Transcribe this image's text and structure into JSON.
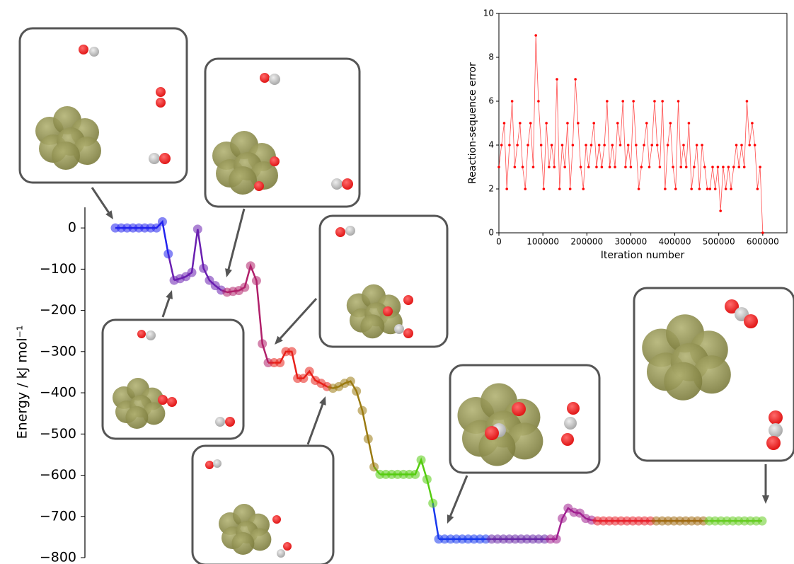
{
  "chart_data": [
    {
      "type": "line",
      "ylabel": "Energy / kJ mol⁻¹",
      "ylim": [
        -800,
        50
      ],
      "yticks": [
        {
          "value": -800,
          "label": "−800"
        },
        {
          "value": -700,
          "label": "−700"
        },
        {
          "value": -600,
          "label": "−600"
        },
        {
          "value": -500,
          "label": "−500"
        },
        {
          "value": -400,
          "label": "−400"
        },
        {
          "value": -300,
          "label": "−300"
        },
        {
          "value": -200,
          "label": "−200"
        },
        {
          "value": -100,
          "label": "−100"
        },
        0
      ],
      "series": [
        {
          "color": "#2222ee",
          "values": [
            0,
            0,
            0,
            0,
            0,
            0,
            0,
            0,
            15,
            -63
          ]
        },
        {
          "color": "#6a1fb0",
          "values": [
            -127,
            -123,
            -118,
            -108,
            -3,
            -98,
            -127,
            -140,
            -151
          ]
        },
        {
          "color": "#b0206a",
          "values": [
            -156,
            -154,
            -152,
            -144,
            -92,
            -128,
            -281,
            -327
          ]
        },
        {
          "color": "#e8201a",
          "values": [
            -327,
            -327,
            -300,
            -300,
            -365,
            -365,
            -348,
            -370,
            -377,
            -385
          ]
        },
        {
          "color": "#9a7a10",
          "values": [
            -389,
            -385,
            -377,
            -372,
            -396,
            -443,
            -512,
            -580
          ]
        },
        {
          "color": "#55cc10",
          "values": [
            -598,
            -598,
            -598,
            -598,
            -598,
            -598,
            -598,
            -563,
            -610,
            -668
          ]
        },
        {
          "color": "#1a3aee",
          "values": [
            -755,
            -755,
            -755,
            -755,
            -755,
            -755,
            -755,
            -755,
            -755
          ]
        },
        {
          "color": "#6a2aa8",
          "values": [
            -755,
            -755,
            -755,
            -755,
            -755,
            -755,
            -755,
            -755,
            -755,
            -755
          ]
        },
        {
          "color": "#a02090",
          "values": [
            -755,
            -755,
            -705,
            -680,
            -690,
            -692,
            -705,
            -709
          ]
        },
        {
          "color": "#e8202a",
          "values": [
            -711,
            -711,
            -711,
            -711,
            -711,
            -711,
            -711,
            -711,
            -711,
            -711
          ]
        },
        {
          "color": "#a06a10",
          "values": [
            -711,
            -711,
            -711,
            -711,
            -711,
            -711,
            -711,
            -711,
            -711
          ]
        },
        {
          "color": "#66cc22",
          "values": [
            -711,
            -711,
            -711,
            -711,
            -711,
            -711,
            -711,
            -711,
            -711,
            -711
          ]
        }
      ]
    },
    {
      "type": "scatter-line",
      "xlabel": "Iteration number",
      "ylabel": "Reaction-sequence error",
      "xlim": [
        0,
        655000
      ],
      "ylim": [
        0,
        10
      ],
      "xticks": [
        0,
        100000,
        200000,
        300000,
        400000,
        500000,
        600000
      ],
      "yticks": [
        0,
        2,
        4,
        6,
        8,
        10
      ],
      "color": "#ff0000",
      "x": [
        0,
        6000,
        12000,
        18000,
        24000,
        30000,
        36000,
        42000,
        48000,
        54000,
        60000,
        66000,
        72000,
        78000,
        84000,
        90000,
        96000,
        102000,
        108000,
        114000,
        120000,
        126000,
        132000,
        138000,
        144000,
        150000,
        156000,
        162000,
        168000,
        174000,
        180000,
        186000,
        192000,
        198000,
        204000,
        210000,
        216000,
        222000,
        228000,
        234000,
        240000,
        246000,
        252000,
        258000,
        264000,
        270000,
        276000,
        282000,
        288000,
        294000,
        300000,
        306000,
        312000,
        318000,
        324000,
        330000,
        336000,
        342000,
        348000,
        354000,
        360000,
        366000,
        372000,
        378000,
        384000,
        390000,
        396000,
        402000,
        408000,
        414000,
        420000,
        426000,
        432000,
        438000,
        444000,
        450000,
        456000,
        462000,
        468000,
        474000,
        480000,
        486000,
        492000,
        498000,
        504000,
        510000,
        516000,
        522000,
        528000,
        534000,
        540000,
        546000,
        552000,
        558000,
        564000,
        570000,
        576000,
        582000,
        588000,
        594000,
        600000
      ],
      "values": [
        3,
        4,
        5,
        2,
        4,
        6,
        3,
        4,
        5,
        3,
        2,
        4,
        5,
        3,
        9,
        6,
        4,
        2,
        5,
        3,
        4,
        3,
        7,
        2,
        4,
        3,
        5,
        2,
        4,
        7,
        5,
        3,
        2,
        4,
        3,
        4,
        5,
        3,
        4,
        3,
        4,
        6,
        3,
        4,
        3,
        5,
        4,
        6,
        3,
        4,
        3,
        6,
        4,
        2,
        3,
        4,
        5,
        3,
        4,
        6,
        4,
        3,
        6,
        2,
        4,
        5,
        3,
        2,
        6,
        3,
        4,
        3,
        5,
        2,
        3,
        4,
        2,
        4,
        3,
        2,
        2,
        3,
        2,
        3,
        1,
        3,
        2,
        3,
        2,
        3,
        4,
        3,
        4,
        3,
        6,
        4,
        5,
        4,
        2,
        3,
        0
      ]
    }
  ]
}
